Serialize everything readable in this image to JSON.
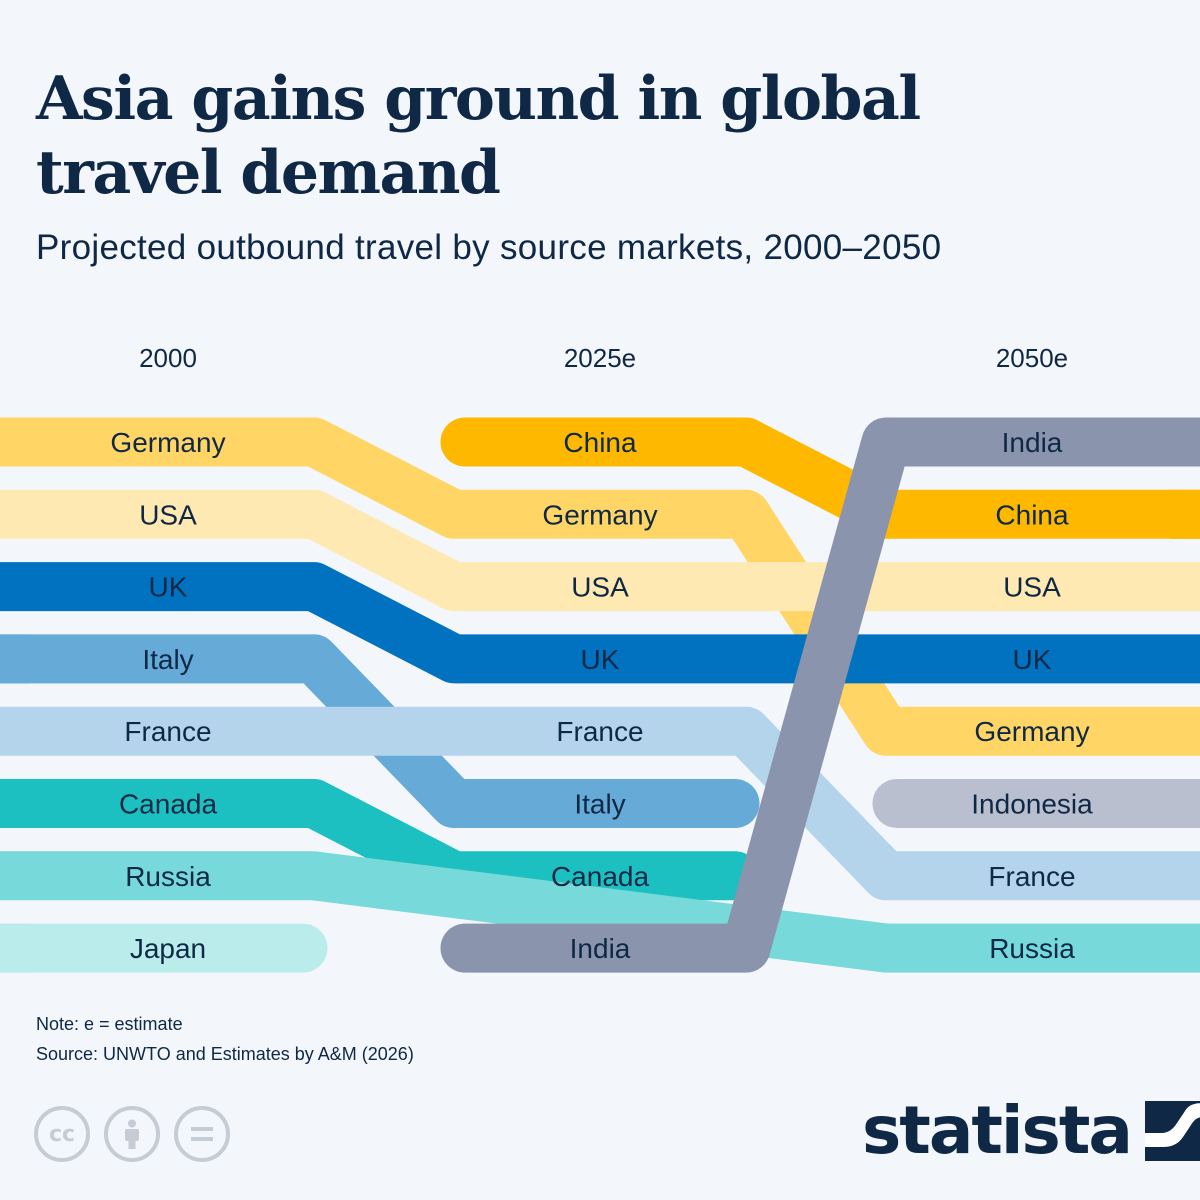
{
  "header": {
    "title": "Asia gains ground in global travel demand",
    "subtitle": "Projected outbound travel by source markets, 2000–2050"
  },
  "chart_data": {
    "type": "table",
    "columns": [
      "2000",
      "2025e",
      "2050e"
    ],
    "rankings": {
      "2000": [
        "Germany",
        "USA",
        "UK",
        "Italy",
        "France",
        "Canada",
        "Russia",
        "Japan"
      ],
      "2025e": [
        "China",
        "Germany",
        "USA",
        "UK",
        "France",
        "Italy",
        "Canada",
        "India"
      ],
      "2050e": [
        "India",
        "China",
        "USA",
        "UK",
        "Germany",
        "Indonesia",
        "France",
        "Russia"
      ]
    },
    "colors": {
      "Germany": "#ffd566",
      "USA": "#ffe9b3",
      "UK": "#0072bf",
      "Italy": "#66aad8",
      "France": "#b3d4ea",
      "Canada": "#1dc0c0",
      "Russia": "#77d9d9",
      "Japan": "#bbecec",
      "China": "#ffb800",
      "India": "#8a94ad",
      "Indonesia": "#b9bfcf"
    }
  },
  "footer": {
    "note": "Note: e = estimate",
    "source": "Source: UNWTO and Estimates by A&M (2026)",
    "brand": "statista",
    "license_icons": [
      "cc-icon",
      "attribution-icon",
      "no-derivatives-icon"
    ]
  }
}
